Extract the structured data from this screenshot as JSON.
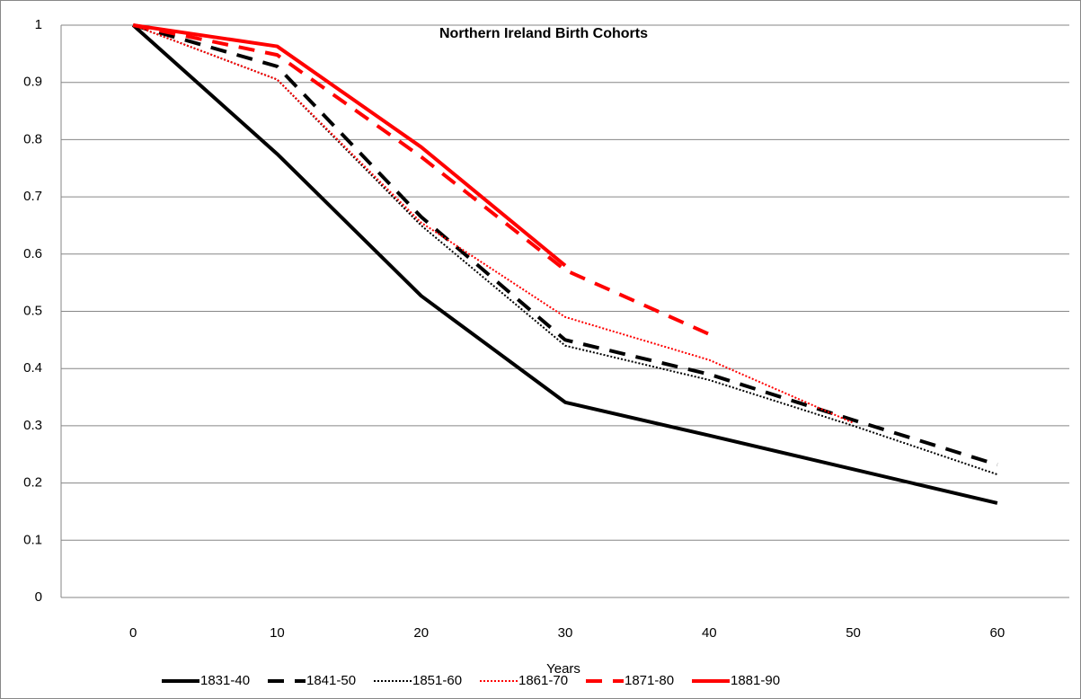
{
  "chart_data": {
    "type": "line",
    "title": "Northern Ireland Birth Cohorts",
    "x_label": "Years",
    "categories": [
      0,
      10,
      20,
      30,
      40,
      50,
      60
    ],
    "ylim": [
      0,
      1
    ],
    "yticks": [
      0,
      0.1,
      0.2,
      0.3,
      0.4,
      0.5,
      0.6,
      0.7,
      0.8,
      0.9,
      1
    ],
    "grid": true,
    "legend": "bottom",
    "series": [
      {
        "name": "1831-40",
        "color": "#000000",
        "style": "solid",
        "values": [
          1,
          0.775,
          0.527,
          0.341,
          0.283,
          0.224,
          0.165
        ]
      },
      {
        "name": "1841-50",
        "color": "#000000",
        "style": "dash",
        "values": [
          1,
          0.928,
          0.665,
          0.45,
          0.39,
          0.31,
          0.232
        ]
      },
      {
        "name": "1851-60",
        "color": "#000000",
        "style": "dot",
        "values": [
          1,
          0.905,
          0.65,
          0.44,
          0.38,
          0.3,
          0.215
        ]
      },
      {
        "name": "1861-70",
        "color": "#ff0000",
        "style": "dot",
        "values": [
          1,
          0.905,
          0.655,
          0.49,
          0.415,
          0.305,
          null
        ]
      },
      {
        "name": "1871-80",
        "color": "#ff0000",
        "style": "dash",
        "values": [
          1,
          0.948,
          0.77,
          0.572,
          0.46,
          null,
          null
        ]
      },
      {
        "name": "1881-90",
        "color": "#ff0000",
        "style": "solid",
        "values": [
          1,
          0.963,
          0.787,
          0.58,
          null,
          null,
          null
        ]
      }
    ]
  }
}
